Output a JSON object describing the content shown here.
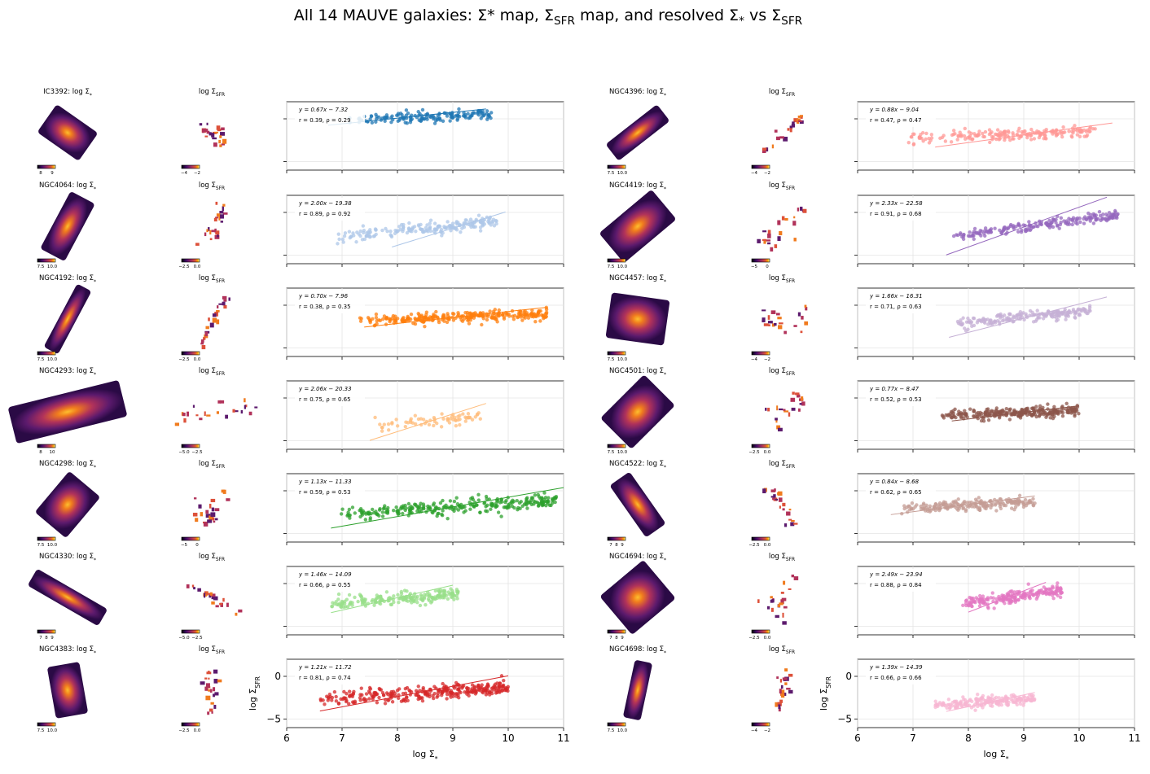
{
  "figure": {
    "title_parts": {
      "a": "All 14 MAUVE galaxies: Σ* map, Σ",
      "sfr_sub": "SFR",
      "b": " map, and resolved Σ",
      "star_sub": "*",
      "c": " vs Σ",
      "sfr_sub2": "SFR"
    },
    "stellar_label_suffix": ": log Σ",
    "sfr_label": "log Σ",
    "x_axis_label": "log Σ",
    "y_axis_label": "log Σ",
    "sub_star": "*",
    "sub_sfr": "SFR",
    "colormap": "inferno"
  },
  "chart_data": [
    {
      "galaxy": "IC3392",
      "type": "scatter",
      "color": "#1f77b4",
      "fit": "y = 0.67x − 7.32",
      "stats": "r = 0.39, ρ = 0.29",
      "slope": 0.67,
      "intercept": -7.32,
      "fit_x": [
        6.75,
        9.6
      ],
      "x_range": [
        7.1,
        9.7
      ],
      "y_center": 0.2,
      "y_spread": 0.55,
      "n_points": 160,
      "xlim": [
        6,
        11
      ],
      "ylim": [
        -6,
        2
      ],
      "star_cbar_ticks": [
        "8",
        "9"
      ],
      "sfr_cbar_ticks": [
        "−4",
        "−2"
      ]
    },
    {
      "galaxy": "NGC4396",
      "type": "scatter",
      "color": "#ff9896",
      "fit": "y = 0.88x − 9.04",
      "stats": "r = 0.47, ρ = 0.47",
      "slope": 0.88,
      "intercept": -9.04,
      "fit_x": [
        7.4,
        10.6
      ],
      "x_range": [
        6.9,
        10.3
      ],
      "y_center": -1.9,
      "y_spread": 0.5,
      "n_points": 200,
      "xlim": [
        6,
        11
      ],
      "ylim": [
        -6,
        2
      ],
      "star_cbar_ticks": [
        "7.5",
        "10.0"
      ],
      "sfr_cbar_ticks": [
        "−4",
        "−2"
      ]
    },
    {
      "galaxy": "NGC4064",
      "type": "scatter",
      "color": "#aec7e8",
      "fit": "y = 2.00x − 19.38",
      "stats": "r = 0.89, ρ = 0.92",
      "slope": 2.0,
      "intercept": -19.38,
      "fit_x": [
        7.9,
        9.95
      ],
      "x_range": [
        6.9,
        9.8
      ],
      "y_center": -2.0,
      "y_spread": 0.6,
      "n_points": 200,
      "xlim": [
        6,
        11
      ],
      "ylim": [
        -6,
        2
      ],
      "star_cbar_ticks": [
        "7.5",
        "10.0"
      ],
      "sfr_cbar_ticks": [
        "−2.5",
        "0.0"
      ]
    },
    {
      "galaxy": "NGC4419",
      "type": "scatter",
      "color": "#9467bd",
      "fit": "y = 2.33x − 22.58",
      "stats": "r = 0.91, ρ = 0.68",
      "slope": 2.33,
      "intercept": -22.58,
      "fit_x": [
        7.6,
        10.5
      ],
      "x_range": [
        7.7,
        10.7
      ],
      "y_center": -1.6,
      "y_spread": 0.5,
      "n_points": 200,
      "xlim": [
        6,
        11
      ],
      "ylim": [
        -6,
        2
      ],
      "star_cbar_ticks": [
        "7.5",
        "10.0"
      ],
      "sfr_cbar_ticks": [
        "−5",
        "0"
      ]
    },
    {
      "galaxy": "NGC4192",
      "type": "scatter",
      "color": "#ff7f0e",
      "fit": "y = 0.70x − 7.96",
      "stats": "r = 0.38, ρ = 0.35",
      "slope": 0.7,
      "intercept": -7.96,
      "fit_x": [
        7.4,
        10.7
      ],
      "x_range": [
        7.3,
        10.7
      ],
      "y_center": -1.4,
      "y_spread": 0.5,
      "n_points": 280,
      "xlim": [
        6,
        11
      ],
      "ylim": [
        -6,
        2
      ],
      "star_cbar_ticks": [
        "7.5",
        "10.0"
      ],
      "sfr_cbar_ticks": [
        "−2.5",
        "0.0"
      ]
    },
    {
      "galaxy": "NGC4457",
      "type": "scatter",
      "color": "#c5b0d5",
      "fit": "y = 1.66x − 16.31",
      "stats": "r = 0.71, ρ = 0.63",
      "slope": 1.66,
      "intercept": -16.31,
      "fit_x": [
        7.65,
        10.5
      ],
      "x_range": [
        7.8,
        10.2
      ],
      "y_center": -1.4,
      "y_spread": 0.5,
      "n_points": 200,
      "xlim": [
        6,
        11
      ],
      "ylim": [
        -6,
        2
      ],
      "star_cbar_ticks": [
        "7.5",
        "10.0"
      ],
      "sfr_cbar_ticks": [
        "−4",
        "−2"
      ]
    },
    {
      "galaxy": "NGC4293",
      "type": "scatter",
      "color": "#ffbb78",
      "fit": "y = 2.06x − 20.33",
      "stats": "r = 0.75, ρ = 0.65",
      "slope": 2.06,
      "intercept": -20.33,
      "fit_x": [
        7.5,
        9.6
      ],
      "x_range": [
        7.5,
        9.5
      ],
      "y_center": -2.8,
      "y_spread": 0.6,
      "n_points": 70,
      "xlim": [
        6,
        11
      ],
      "ylim": [
        -6,
        2
      ],
      "star_cbar_ticks": [
        "8",
        "10"
      ],
      "sfr_cbar_ticks": [
        "−5.0",
        "−2.5"
      ]
    },
    {
      "galaxy": "NGC4501",
      "type": "scatter",
      "color": "#8c564b",
      "fit": "y = 0.77x − 8.47",
      "stats": "r = 0.52, ρ = 0.53",
      "slope": 0.77,
      "intercept": -8.47,
      "fit_x": [
        7.7,
        10.0
      ],
      "x_range": [
        7.5,
        10.0
      ],
      "y_center": -1.8,
      "y_spread": 0.5,
      "n_points": 280,
      "xlim": [
        6,
        11
      ],
      "ylim": [
        -6,
        2
      ],
      "star_cbar_ticks": [
        "7.5",
        "10.0"
      ],
      "sfr_cbar_ticks": [
        "−2.5",
        "0.0"
      ]
    },
    {
      "galaxy": "NGC4298",
      "type": "scatter",
      "color": "#2ca02c",
      "fit": "y = 1.13x − 11.33",
      "stats": "r = 0.59, ρ = 0.53",
      "slope": 1.13,
      "intercept": -11.33,
      "fit_x": [
        6.8,
        11.0
      ],
      "x_range": [
        6.9,
        10.9
      ],
      "y_center": -2.0,
      "y_spread": 0.7,
      "n_points": 280,
      "xlim": [
        6,
        11
      ],
      "ylim": [
        -6,
        2
      ],
      "star_cbar_ticks": [
        "7.5",
        "10.0"
      ],
      "sfr_cbar_ticks": [
        "−5",
        "0"
      ]
    },
    {
      "galaxy": "NGC4522",
      "type": "scatter",
      "color": "#c49c94",
      "fit": "y = 0.84x − 8.68",
      "stats": "r = 0.62, ρ = 0.65",
      "slope": 0.84,
      "intercept": -8.68,
      "fit_x": [
        6.6,
        9.2
      ],
      "x_range": [
        6.7,
        9.2
      ],
      "y_center": -1.7,
      "y_spread": 0.5,
      "n_points": 200,
      "xlim": [
        6,
        11
      ],
      "ylim": [
        -6,
        2
      ],
      "star_cbar_ticks": [
        "7",
        "8",
        "9"
      ],
      "sfr_cbar_ticks": [
        "−2.5",
        "0.0"
      ]
    },
    {
      "galaxy": "NGC4330",
      "type": "scatter",
      "color": "#98df8a",
      "fit": "y = 1.46x − 14.09",
      "stats": "r = 0.66, ρ = 0.55",
      "slope": 1.46,
      "intercept": -14.09,
      "fit_x": [
        6.8,
        9.0
      ],
      "x_range": [
        6.8,
        9.1
      ],
      "y_center": -1.8,
      "y_spread": 0.6,
      "n_points": 200,
      "xlim": [
        6,
        11
      ],
      "ylim": [
        -6,
        2
      ],
      "star_cbar_ticks": [
        "7",
        "8",
        "9"
      ],
      "sfr_cbar_ticks": [
        "−5.0",
        "−2.5"
      ]
    },
    {
      "galaxy": "NGC4694",
      "type": "scatter",
      "color": "#e377c2",
      "fit": "y = 2.49x − 23.94",
      "stats": "r = 0.88, ρ = 0.84",
      "slope": 2.49,
      "intercept": -23.94,
      "fit_x": [
        8.0,
        9.4
      ],
      "x_range": [
        7.9,
        9.7
      ],
      "y_center": -1.6,
      "y_spread": 0.6,
      "n_points": 200,
      "xlim": [
        6,
        11
      ],
      "ylim": [
        -6,
        2
      ],
      "star_cbar_ticks": [
        "7",
        "8",
        "9"
      ],
      "sfr_cbar_ticks": [
        "−2.5",
        "0.0"
      ]
    },
    {
      "galaxy": "NGC4383",
      "type": "scatter",
      "color": "#d62728",
      "fit": "y = 1.21x − 11.72",
      "stats": "r = 0.81, ρ = 0.74",
      "slope": 1.21,
      "intercept": -11.72,
      "fit_x": [
        6.6,
        10.0
      ],
      "x_range": [
        6.6,
        10.0
      ],
      "y_center": -2.0,
      "y_spread": 0.7,
      "n_points": 300,
      "xlim": [
        6,
        11
      ],
      "ylim": [
        -6,
        2
      ],
      "x_ticks": [
        6,
        7,
        8,
        9,
        10,
        11
      ],
      "y_ticks": [
        0,
        -5
      ],
      "star_cbar_ticks": [
        "7.5",
        "10.0"
      ],
      "sfr_cbar_ticks": [
        "−2.5",
        "0.0"
      ]
    },
    {
      "galaxy": "NGC4698",
      "type": "scatter",
      "color": "#f7b6d2",
      "fit": "y = 1.39x − 14.39",
      "stats": "r = 0.66, ρ = 0.66",
      "slope": 1.39,
      "intercept": -14.39,
      "fit_x": [
        7.6,
        9.2
      ],
      "x_range": [
        7.4,
        9.2
      ],
      "y_center": -3.0,
      "y_spread": 0.5,
      "n_points": 200,
      "xlim": [
        6,
        11
      ],
      "ylim": [
        -6,
        2
      ],
      "x_ticks": [
        6,
        7,
        8,
        9,
        10,
        11
      ],
      "y_ticks": [
        0,
        -5
      ],
      "star_cbar_ticks": [
        "7.5",
        "10.0"
      ],
      "sfr_cbar_ticks": [
        "−4",
        "−2"
      ]
    }
  ]
}
